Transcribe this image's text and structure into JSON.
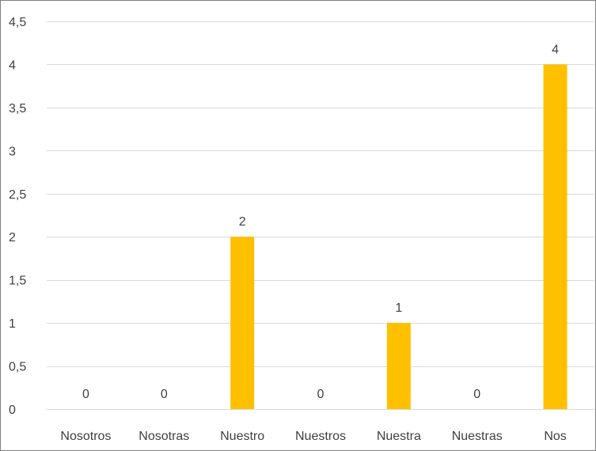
{
  "chart_data": {
    "type": "bar",
    "title": "",
    "xlabel": "",
    "ylabel": "",
    "categories": [
      "Nosotros",
      "Nosotras",
      "Nuestro",
      "Nuestros",
      "Nuestra",
      "Nuestras",
      "Nos"
    ],
    "values": [
      0,
      0,
      2,
      0,
      1,
      0,
      4
    ],
    "data_labels": [
      "0",
      "0",
      "2",
      "0",
      "1",
      "0",
      "4"
    ],
    "ylim": [
      0,
      4.5
    ],
    "yticks": [
      0,
      0.5,
      1,
      1.5,
      2,
      2.5,
      3,
      3.5,
      4,
      4.5
    ],
    "ytick_labels": [
      "0",
      "0,5",
      "1",
      "1,5",
      "2",
      "2,5",
      "3",
      "3,5",
      "4",
      "4,5"
    ],
    "grid": true,
    "legend": "none",
    "colors": {
      "bar": "#FFC000",
      "gridline": "#D9D9D9",
      "text": "#404040",
      "border": "#7F7F7F"
    }
  }
}
